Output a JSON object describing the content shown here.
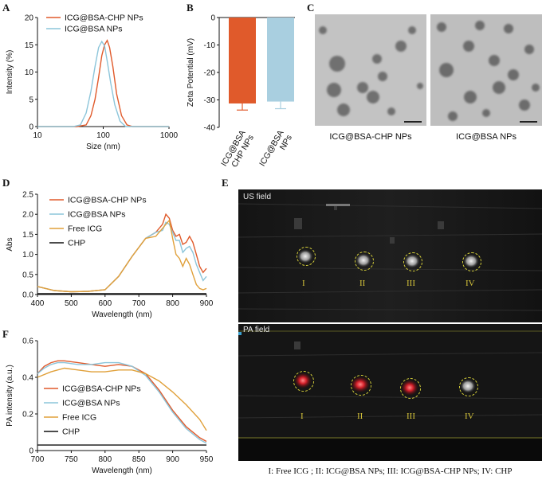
{
  "panels": {
    "A": "A",
    "B": "B",
    "C": "C",
    "D": "D",
    "E": "E",
    "F": "F"
  },
  "chart_A": {
    "type": "line",
    "xlabel": "Size (nm)",
    "ylabel": "Intensity (%)",
    "xscale": "log",
    "xlim": [
      10,
      1000
    ],
    "ylim": [
      0,
      20
    ],
    "xticks": [
      "10",
      "100",
      "1000"
    ],
    "yticks": [
      "0",
      "5",
      "10",
      "15",
      "20"
    ],
    "legend": "top-left",
    "series": [
      {
        "name": "ICG@BSA-CHP NPs",
        "color": "#e05a2b",
        "x": [
          10,
          40,
          55,
          65,
          75,
          85,
          95,
          105,
          115,
          125,
          140,
          160,
          190,
          230,
          280,
          1000
        ],
        "y": [
          0,
          0,
          0.3,
          2,
          5,
          9,
          13,
          15,
          15.8,
          14.5,
          11,
          6,
          2,
          0.3,
          0,
          0
        ]
      },
      {
        "name": "ICG@BSA NPs",
        "color": "#8cc5da",
        "x": [
          10,
          35,
          45,
          55,
          65,
          75,
          85,
          95,
          105,
          115,
          130,
          150,
          180,
          220,
          1000
        ],
        "y": [
          0,
          0,
          0.3,
          2.5,
          6.5,
          11,
          14.5,
          15.6,
          14.8,
          12,
          8,
          4,
          1,
          0,
          0
        ]
      }
    ]
  },
  "chart_B": {
    "type": "bar",
    "ylabel": "Zeta Potential (mV)",
    "ylim": [
      -40,
      0
    ],
    "yticks": [
      "0",
      "-10",
      "-20",
      "-30",
      "-40"
    ],
    "categories": [
      "ICG@BSA -CHP NPs",
      "ICG@BSA NPs"
    ],
    "cat_lines": [
      [
        "ICG@BSA",
        "-CHP NPs"
      ],
      [
        "ICG@BSA",
        "NPs"
      ]
    ],
    "values": [
      -31.3,
      -30.6
    ],
    "errors": [
      2.4,
      2.6
    ],
    "colors": [
      "#e05a2b",
      "#a9cfe0"
    ]
  },
  "panel_C": {
    "captions": [
      "ICG@BSA-CHP NPs",
      "ICG@BSA NPs"
    ]
  },
  "chart_D": {
    "type": "line",
    "xlabel": "Wavelength (nm)",
    "ylabel": "Abs",
    "xlim": [
      400,
      900
    ],
    "ylim": [
      0,
      2.5
    ],
    "xticks": [
      "400",
      "500",
      "600",
      "700",
      "800",
      "900"
    ],
    "yticks": [
      "0.0",
      "0.5",
      "1.0",
      "1.5",
      "2.0",
      "2.5"
    ],
    "legend": "top-left",
    "series": [
      {
        "name": "ICG@BSA-CHP NPs",
        "color": "#e05a2b",
        "x": [
          400,
          450,
          500,
          550,
          600,
          640,
          680,
          720,
          750,
          770,
          780,
          790,
          800,
          810,
          820,
          830,
          840,
          850,
          860,
          870,
          880,
          890,
          900
        ],
        "y": [
          0.2,
          0.1,
          0.07,
          0.08,
          0.12,
          0.45,
          0.95,
          1.4,
          1.55,
          1.75,
          2.0,
          1.9,
          1.6,
          1.45,
          1.5,
          1.25,
          1.3,
          1.45,
          1.3,
          1.0,
          0.7,
          0.55,
          0.65
        ]
      },
      {
        "name": "ICG@BSA NPs",
        "color": "#8cc5da",
        "x": [
          400,
          450,
          500,
          550,
          600,
          640,
          680,
          720,
          750,
          770,
          780,
          790,
          800,
          810,
          820,
          830,
          840,
          850,
          860,
          870,
          880,
          890,
          900
        ],
        "y": [
          0.2,
          0.1,
          0.07,
          0.08,
          0.12,
          0.45,
          0.95,
          1.4,
          1.55,
          1.6,
          1.8,
          1.75,
          1.55,
          1.35,
          1.35,
          1.05,
          1.15,
          1.2,
          1.05,
          0.75,
          0.55,
          0.35,
          0.45
        ]
      },
      {
        "name": "Free ICG",
        "color": "#e0a03a",
        "x": [
          400,
          450,
          500,
          550,
          600,
          640,
          680,
          720,
          750,
          770,
          780,
          790,
          800,
          810,
          820,
          830,
          840,
          850,
          860,
          870,
          880,
          890,
          900
        ],
        "y": [
          0.2,
          0.1,
          0.07,
          0.08,
          0.12,
          0.45,
          0.95,
          1.4,
          1.45,
          1.65,
          1.75,
          1.85,
          1.4,
          1.0,
          0.9,
          0.7,
          0.9,
          0.75,
          0.5,
          0.25,
          0.15,
          0.12,
          0.15
        ]
      },
      {
        "name": "CHP",
        "color": "#111111",
        "x": [
          400,
          900
        ],
        "y": [
          0.02,
          0.02
        ]
      }
    ]
  },
  "chart_F": {
    "type": "line",
    "xlabel": "Wavelength (nm)",
    "ylabel": "PA intensity  (a.u.)",
    "xlim": [
      700,
      950
    ],
    "ylim": [
      0,
      0.6
    ],
    "xticks": [
      "700",
      "750",
      "800",
      "850",
      "900",
      "950"
    ],
    "yticks": [
      "0",
      "0.2",
      "0.4",
      "0.6"
    ],
    "legend": "bottom-left",
    "series": [
      {
        "name": "ICG@BSA-CHP NPs",
        "color": "#e05a2b",
        "x": [
          700,
          710,
          720,
          730,
          740,
          760,
          780,
          800,
          820,
          840,
          860,
          880,
          900,
          920,
          940,
          950
        ],
        "y": [
          0.42,
          0.46,
          0.48,
          0.49,
          0.49,
          0.48,
          0.47,
          0.46,
          0.47,
          0.46,
          0.42,
          0.33,
          0.22,
          0.13,
          0.07,
          0.05
        ]
      },
      {
        "name": "ICG@BSA NPs",
        "color": "#8cc5da",
        "x": [
          700,
          710,
          720,
          730,
          740,
          760,
          780,
          800,
          820,
          840,
          860,
          880,
          900,
          920,
          940,
          950
        ],
        "y": [
          0.42,
          0.45,
          0.47,
          0.48,
          0.48,
          0.47,
          0.47,
          0.48,
          0.48,
          0.46,
          0.41,
          0.32,
          0.21,
          0.12,
          0.06,
          0.04
        ]
      },
      {
        "name": "Free ICG",
        "color": "#e0a03a",
        "x": [
          700,
          720,
          740,
          760,
          780,
          800,
          820,
          840,
          860,
          880,
          900,
          920,
          940,
          950
        ],
        "y": [
          0.4,
          0.43,
          0.45,
          0.44,
          0.43,
          0.43,
          0.44,
          0.44,
          0.42,
          0.38,
          0.32,
          0.25,
          0.17,
          0.11
        ]
      },
      {
        "name": "CHP",
        "color": "#111111",
        "x": [
          700,
          950
        ],
        "y": [
          0.03,
          0.03
        ]
      }
    ]
  },
  "panel_E": {
    "us_label": "US field",
    "pa_label": "PA field",
    "markers": [
      "I",
      "II",
      "III",
      "IV"
    ],
    "legend": "I: Free ICG ; II: ICG@BSA NPs; III: ICG@BSA-CHP NPs; IV: CHP",
    "pa_color": "#d4202a",
    "ring_color": "#d8d23a"
  }
}
